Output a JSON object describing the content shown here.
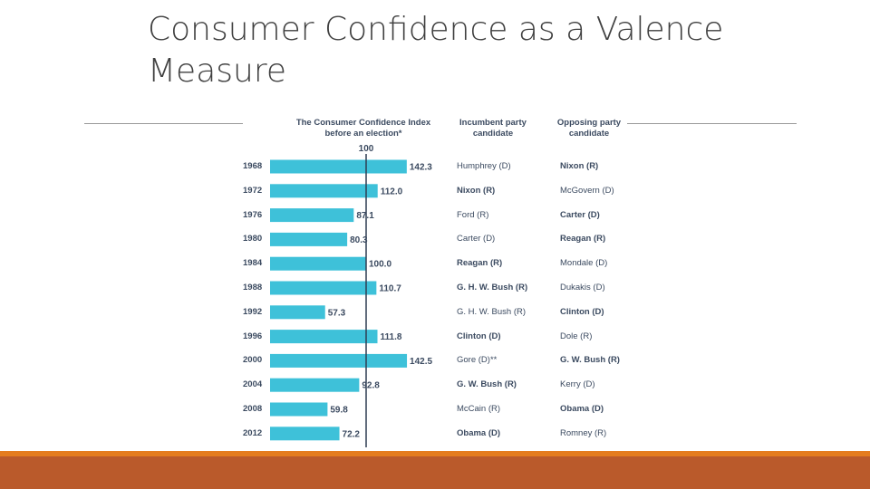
{
  "slide": {
    "title": "Consumer Confidence as a Valence Measure",
    "footer_color_top": "#E47C1E",
    "footer_color_main": "#BA5A2B"
  },
  "headers": {
    "index_line1": "The Consumer Confidence Index",
    "index_line2": "before an election*",
    "incumbent_line1": "Incumbent party",
    "incumbent_line2": "candidate",
    "opposing_line1": "Opposing party",
    "opposing_line2": "candidate"
  },
  "chart_data": {
    "type": "bar",
    "orientation": "horizontal",
    "reference_value": 100,
    "reference_label": "100",
    "bar_color": "#3EC1D9",
    "categories": [
      "1968",
      "1972",
      "1976",
      "1980",
      "1984",
      "1988",
      "1992",
      "1996",
      "2000",
      "2004",
      "2008",
      "2012"
    ],
    "values": [
      142.3,
      112.0,
      87.1,
      80.3,
      100.0,
      110.7,
      57.3,
      111.8,
      142.5,
      92.8,
      59.8,
      72.2
    ],
    "value_labels": [
      "142.3",
      "112.0",
      "87.1",
      "80.3",
      "100.0",
      "110.7",
      "57.3",
      "111.8",
      "142.5",
      "92.8",
      "59.8",
      "72.2"
    ],
    "incumbent": [
      "Humphrey (D)",
      "Nixon (R)",
      "Ford (R)",
      "Carter (D)",
      "Reagan (R)",
      "G. H. W. Bush (R)",
      "G. H. W. Bush (R)",
      "Clinton (D)",
      "Gore (D)**",
      "G. W. Bush (R)",
      "McCain (R)",
      "Obama (D)"
    ],
    "opposing": [
      "Nixon (R)",
      "McGovern (D)",
      "Carter (D)",
      "Reagan (R)",
      "Mondale (D)",
      "Dukakis (D)",
      "Clinton (D)",
      "Dole (R)",
      "G. W. Bush (R)",
      "Kerry (D)",
      "Obama (D)",
      "Romney (R)"
    ],
    "winner": [
      "opposing",
      "incumbent",
      "opposing",
      "opposing",
      "incumbent",
      "incumbent",
      "opposing",
      "incumbent",
      "opposing",
      "incumbent",
      "opposing",
      "incumbent"
    ]
  }
}
